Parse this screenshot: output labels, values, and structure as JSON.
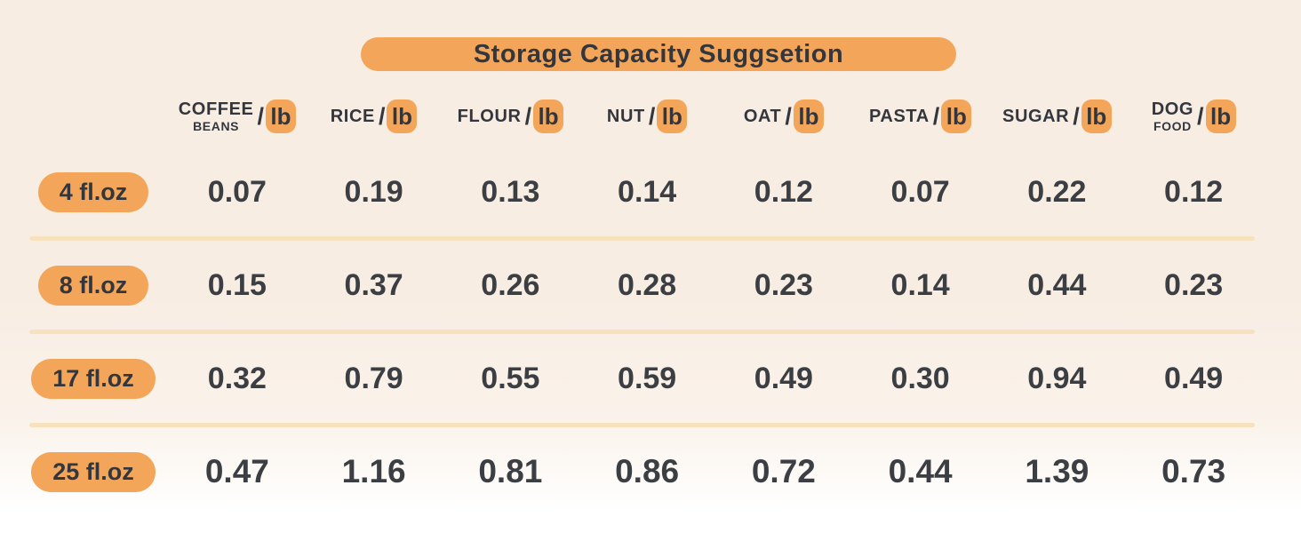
{
  "title": "Storage Capacity Suggsetion",
  "columns": [
    {
      "line1": "COFFEE",
      "line2": "BEANS",
      "slash": "/",
      "unit": "lb"
    },
    {
      "line1": "RICE",
      "slash": "/",
      "unit": "lb"
    },
    {
      "line1": "FLOUR",
      "slash": "/",
      "unit": "lb"
    },
    {
      "line1": "NUT",
      "slash": "/",
      "unit": "lb"
    },
    {
      "line1": "OAT",
      "slash": "/",
      "unit": "lb"
    },
    {
      "line1": "PASTA",
      "slash": "/",
      "unit": "lb"
    },
    {
      "line1": "SUGAR",
      "slash": "/",
      "unit": "lb"
    },
    {
      "line1": "DOG",
      "line2": "FOOD",
      "slash": "/",
      "unit": "lb"
    }
  ],
  "rows": [
    {
      "label": "4 fl.oz",
      "values": [
        "0.07",
        "0.19",
        "0.13",
        "0.14",
        "0.12",
        "0.07",
        "0.22",
        "0.12"
      ]
    },
    {
      "label": "8 fl.oz",
      "values": [
        "0.15",
        "0.37",
        "0.26",
        "0.28",
        "0.23",
        "0.14",
        "0.44",
        "0.23"
      ]
    },
    {
      "label": "17 fl.oz",
      "values": [
        "0.32",
        "0.79",
        "0.55",
        "0.59",
        "0.49",
        "0.30",
        "0.94",
        "0.49"
      ]
    },
    {
      "label": "25 fl.oz",
      "values": [
        "0.47",
        "1.16",
        "0.81",
        "0.86",
        "0.72",
        "0.44",
        "1.39",
        "0.73"
      ]
    }
  ],
  "colors": {
    "accent_orange": "#F3A65A",
    "text_dark": "#33373D",
    "value_text": "#3B3E42",
    "divider": "#F8E2BE",
    "background_top": "#F8EDE3",
    "background_bottom": "#FFFFFF"
  },
  "chart_data": {
    "type": "table",
    "title": "Storage Capacity Suggsetion",
    "column_headers": [
      "COFFEE BEANS/lb",
      "RICE/lb",
      "FLOUR/lb",
      "NUT/lb",
      "OAT/lb",
      "PASTA/lb",
      "SUGAR/lb",
      "DOG FOOD/lb"
    ],
    "row_headers": [
      "4 fl.oz",
      "8 fl.oz",
      "17 fl.oz",
      "25 fl.oz"
    ],
    "values": [
      [
        0.07,
        0.19,
        0.13,
        0.14,
        0.12,
        0.07,
        0.22,
        0.12
      ],
      [
        0.15,
        0.37,
        0.26,
        0.28,
        0.23,
        0.14,
        0.44,
        0.23
      ],
      [
        0.32,
        0.79,
        0.55,
        0.59,
        0.49,
        0.3,
        0.94,
        0.49
      ],
      [
        0.47,
        1.16,
        0.81,
        0.86,
        0.72,
        0.44,
        1.39,
        0.73
      ]
    ],
    "units": "lb per container size (fl.oz)"
  }
}
